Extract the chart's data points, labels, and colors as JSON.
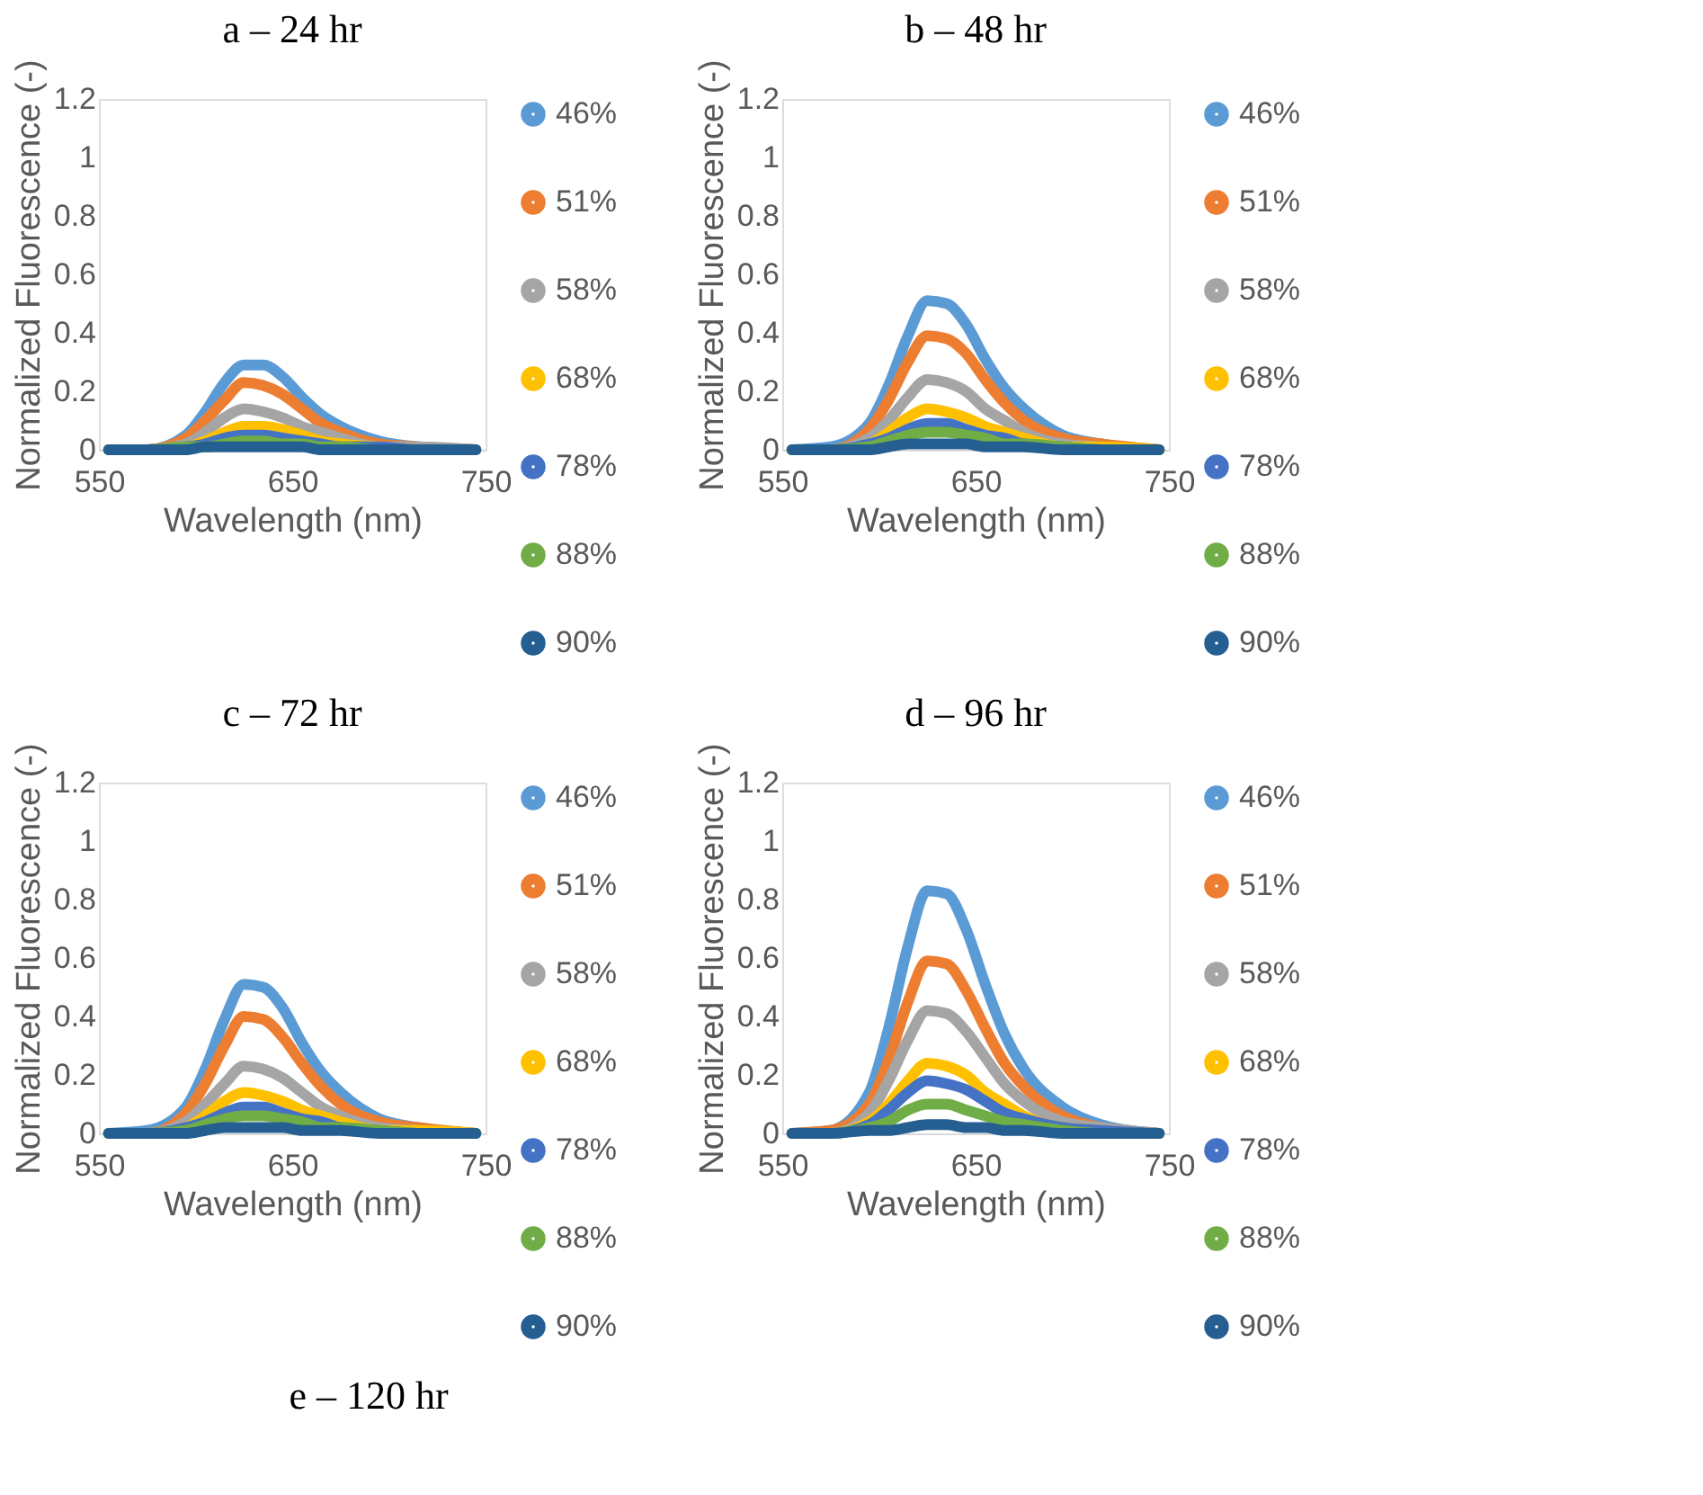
{
  "chart_data": [
    {
      "type": "line",
      "title": "a – 24 hr",
      "xlabel": "Wavelength (nm)",
      "ylabel": "Normalized Fluorescence (-)",
      "legend": "right",
      "grid": false,
      "x": [
        555,
        575,
        595,
        605,
        615,
        625,
        635,
        645,
        655,
        665,
        675,
        695,
        715,
        745
      ],
      "xlim": [
        550,
        750
      ],
      "xticks": [
        550,
        650,
        750
      ],
      "ylim": [
        0,
        1.2
      ],
      "yticks": [
        0,
        0.2,
        0.4,
        0.6,
        0.8,
        1,
        1.2
      ],
      "series": [
        {
          "name": "46%",
          "color": "#5b9bd5",
          "values": [
            0,
            0,
            0.05,
            0.13,
            0.23,
            0.29,
            0.29,
            0.25,
            0.18,
            0.12,
            0.08,
            0.03,
            0.01,
            0
          ]
        },
        {
          "name": "51%",
          "color": "#ed7d31",
          "values": [
            0,
            0,
            0.04,
            0.1,
            0.17,
            0.23,
            0.22,
            0.19,
            0.14,
            0.09,
            0.06,
            0.02,
            0.01,
            0
          ]
        },
        {
          "name": "58%",
          "color": "#a5a5a5",
          "values": [
            0,
            0,
            0.02,
            0.06,
            0.11,
            0.14,
            0.13,
            0.11,
            0.08,
            0.06,
            0.04,
            0.01,
            0.01,
            0
          ]
        },
        {
          "name": "68%",
          "color": "#ffc000",
          "values": [
            0,
            0,
            0.01,
            0.03,
            0.06,
            0.08,
            0.08,
            0.07,
            0.05,
            0.03,
            0.02,
            0.01,
            0,
            0
          ]
        },
        {
          "name": "78%",
          "color": "#4472c4",
          "values": [
            0,
            0,
            0.01,
            0.02,
            0.04,
            0.05,
            0.05,
            0.04,
            0.03,
            0.02,
            0.01,
            0.01,
            0,
            0
          ]
        },
        {
          "name": "88%",
          "color": "#70ad47",
          "values": [
            0,
            0,
            0.01,
            0.01,
            0.02,
            0.03,
            0.03,
            0.02,
            0.02,
            0.01,
            0.01,
            0,
            0,
            0
          ]
        },
        {
          "name": "90%",
          "color": "#255e91",
          "values": [
            0,
            0,
            0,
            0.01,
            0.01,
            0.01,
            0.01,
            0.01,
            0.01,
            0,
            0,
            0,
            0,
            0
          ]
        }
      ]
    },
    {
      "type": "line",
      "title": "b – 48 hr",
      "xlabel": "Wavelength (nm)",
      "ylabel": "Normalized Fluorescence (-)",
      "legend": "right",
      "grid": false,
      "x": [
        555,
        575,
        595,
        605,
        615,
        625,
        635,
        645,
        655,
        665,
        675,
        695,
        715,
        745
      ],
      "xlim": [
        550,
        750
      ],
      "xticks": [
        550,
        650,
        750
      ],
      "ylim": [
        0,
        1.2
      ],
      "yticks": [
        0,
        0.2,
        0.4,
        0.6,
        0.8,
        1,
        1.2
      ],
      "series": [
        {
          "name": "46%",
          "color": "#5b9bd5",
          "values": [
            0,
            0.01,
            0.09,
            0.22,
            0.39,
            0.51,
            0.5,
            0.43,
            0.31,
            0.21,
            0.14,
            0.05,
            0.02,
            0
          ]
        },
        {
          "name": "51%",
          "color": "#ed7d31",
          "values": [
            0,
            0,
            0.07,
            0.17,
            0.3,
            0.39,
            0.38,
            0.33,
            0.24,
            0.16,
            0.1,
            0.04,
            0.02,
            0
          ]
        },
        {
          "name": "58%",
          "color": "#a5a5a5",
          "values": [
            0,
            0,
            0.04,
            0.1,
            0.18,
            0.24,
            0.23,
            0.2,
            0.14,
            0.1,
            0.06,
            0.02,
            0.01,
            0
          ]
        },
        {
          "name": "68%",
          "color": "#ffc000",
          "values": [
            0,
            0,
            0.02,
            0.06,
            0.11,
            0.14,
            0.13,
            0.11,
            0.08,
            0.06,
            0.04,
            0.01,
            0.01,
            0
          ]
        },
        {
          "name": "78%",
          "color": "#4472c4",
          "values": [
            0,
            0,
            0.02,
            0.04,
            0.07,
            0.09,
            0.09,
            0.07,
            0.05,
            0.04,
            0.02,
            0.01,
            0,
            0
          ]
        },
        {
          "name": "88%",
          "color": "#70ad47",
          "values": [
            0,
            0,
            0.01,
            0.03,
            0.05,
            0.06,
            0.06,
            0.05,
            0.04,
            0.02,
            0.02,
            0.01,
            0,
            0
          ]
        },
        {
          "name": "90%",
          "color": "#255e91",
          "values": [
            0,
            0,
            0,
            0.01,
            0.02,
            0.02,
            0.02,
            0.02,
            0.01,
            0.01,
            0.01,
            0,
            0,
            0
          ]
        }
      ]
    },
    {
      "type": "line",
      "title": "c – 72 hr",
      "xlabel": "Wavelength (nm)",
      "ylabel": "Normalized Fluorescence (-)",
      "legend": "right",
      "grid": false,
      "x": [
        555,
        575,
        595,
        605,
        615,
        625,
        635,
        645,
        655,
        665,
        675,
        695,
        715,
        745
      ],
      "xlim": [
        550,
        750
      ],
      "xticks": [
        550,
        650,
        750
      ],
      "ylim": [
        0,
        1.2
      ],
      "yticks": [
        0,
        0.2,
        0.4,
        0.6,
        0.8,
        1,
        1.2
      ],
      "series": [
        {
          "name": "46%",
          "color": "#5b9bd5",
          "values": [
            0,
            0.01,
            0.09,
            0.22,
            0.39,
            0.51,
            0.5,
            0.43,
            0.31,
            0.21,
            0.14,
            0.05,
            0.02,
            0
          ]
        },
        {
          "name": "51%",
          "color": "#ed7d31",
          "values": [
            0,
            0,
            0.07,
            0.17,
            0.3,
            0.4,
            0.39,
            0.33,
            0.24,
            0.16,
            0.1,
            0.04,
            0.02,
            0
          ]
        },
        {
          "name": "58%",
          "color": "#a5a5a5",
          "values": [
            0,
            0,
            0.04,
            0.1,
            0.17,
            0.23,
            0.22,
            0.19,
            0.14,
            0.09,
            0.06,
            0.02,
            0.01,
            0
          ]
        },
        {
          "name": "68%",
          "color": "#ffc000",
          "values": [
            0,
            0,
            0.02,
            0.06,
            0.11,
            0.14,
            0.13,
            0.11,
            0.08,
            0.06,
            0.04,
            0.01,
            0.01,
            0
          ]
        },
        {
          "name": "78%",
          "color": "#4472c4",
          "values": [
            0,
            0,
            0.02,
            0.04,
            0.07,
            0.09,
            0.09,
            0.07,
            0.05,
            0.04,
            0.02,
            0.01,
            0,
            0
          ]
        },
        {
          "name": "88%",
          "color": "#70ad47",
          "values": [
            0,
            0,
            0.01,
            0.03,
            0.05,
            0.06,
            0.06,
            0.05,
            0.04,
            0.02,
            0.02,
            0.01,
            0,
            0
          ]
        },
        {
          "name": "90%",
          "color": "#255e91",
          "values": [
            0,
            0,
            0,
            0.01,
            0.02,
            0.02,
            0.02,
            0.02,
            0.01,
            0.01,
            0.01,
            0,
            0,
            0
          ]
        }
      ]
    },
    {
      "type": "line",
      "title": "d – 96 hr",
      "xlabel": "Wavelength (nm)",
      "ylabel": "Normalized Fluorescence (-)",
      "legend": "right",
      "grid": false,
      "x": [
        555,
        575,
        595,
        605,
        615,
        625,
        635,
        645,
        655,
        665,
        675,
        695,
        715,
        745
      ],
      "xlim": [
        550,
        750
      ],
      "xticks": [
        550,
        650,
        750
      ],
      "ylim": [
        0,
        1.2
      ],
      "yticks": [
        0,
        0.2,
        0.4,
        0.6,
        0.8,
        1,
        1.2
      ],
      "series": [
        {
          "name": "46%",
          "color": "#5b9bd5",
          "values": [
            0,
            0.01,
            0.14,
            0.36,
            0.64,
            0.83,
            0.82,
            0.7,
            0.51,
            0.34,
            0.22,
            0.09,
            0.03,
            0
          ]
        },
        {
          "name": "51%",
          "color": "#ed7d31",
          "values": [
            0,
            0.01,
            0.1,
            0.25,
            0.45,
            0.59,
            0.58,
            0.49,
            0.36,
            0.24,
            0.16,
            0.06,
            0.02,
            0
          ]
        },
        {
          "name": "58%",
          "color": "#a5a5a5",
          "values": [
            0,
            0,
            0.07,
            0.18,
            0.32,
            0.42,
            0.41,
            0.35,
            0.26,
            0.17,
            0.11,
            0.04,
            0.02,
            0
          ]
        },
        {
          "name": "68%",
          "color": "#ffc000",
          "values": [
            0,
            0,
            0.04,
            0.1,
            0.18,
            0.24,
            0.23,
            0.2,
            0.14,
            0.1,
            0.06,
            0.02,
            0.01,
            0
          ]
        },
        {
          "name": "78%",
          "color": "#4472c4",
          "values": [
            0,
            0,
            0.03,
            0.08,
            0.14,
            0.18,
            0.17,
            0.15,
            0.11,
            0.07,
            0.05,
            0.02,
            0.01,
            0
          ]
        },
        {
          "name": "88%",
          "color": "#70ad47",
          "values": [
            0,
            0,
            0.02,
            0.04,
            0.08,
            0.1,
            0.1,
            0.08,
            0.06,
            0.04,
            0.03,
            0.01,
            0,
            0
          ]
        },
        {
          "name": "90%",
          "color": "#255e91",
          "values": [
            0,
            0,
            0.01,
            0.01,
            0.02,
            0.03,
            0.03,
            0.02,
            0.02,
            0.01,
            0.01,
            0,
            0,
            0
          ]
        }
      ]
    },
    {
      "type": "other",
      "title": "e – 120 hr"
    }
  ]
}
